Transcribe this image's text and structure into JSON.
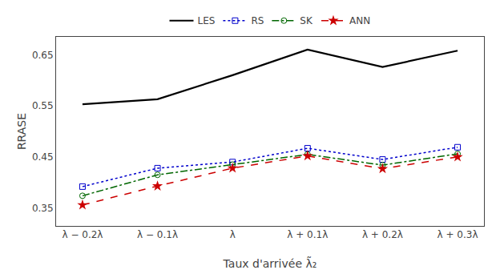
{
  "chart_data": {
    "type": "line",
    "xlabel": "Taux d'arrivée λ̃₂",
    "ylabel": "RRASE",
    "categories": [
      "λ − 0.2λ",
      "λ − 0.1λ",
      "λ",
      "λ + 0.1λ",
      "λ + 0.2λ",
      "λ + 0.3λ"
    ],
    "series": [
      {
        "name": "LES",
        "color": "#000000",
        "line_style": "solid",
        "marker": "none",
        "values": [
          0.553,
          0.563,
          0.61,
          0.66,
          0.626,
          0.658
        ]
      },
      {
        "name": "RS",
        "color": "#0000cc",
        "line_style": "dotted",
        "marker": "open_square",
        "values": [
          0.392,
          0.428,
          0.44,
          0.467,
          0.445,
          0.469
        ]
      },
      {
        "name": "SK",
        "color": "#006600",
        "line_style": "dashdot",
        "marker": "open_circle",
        "values": [
          0.374,
          0.415,
          0.435,
          0.455,
          0.434,
          0.456
        ]
      },
      {
        "name": "ANN",
        "color": "#cc0000",
        "line_style": "dashed",
        "marker": "star",
        "values": [
          0.356,
          0.393,
          0.428,
          0.452,
          0.427,
          0.45
        ]
      }
    ],
    "ylim": [
      0.315,
      0.685
    ],
    "yticks": [
      0.35,
      0.45,
      0.55,
      0.65
    ],
    "grid": false,
    "legend": "top"
  }
}
